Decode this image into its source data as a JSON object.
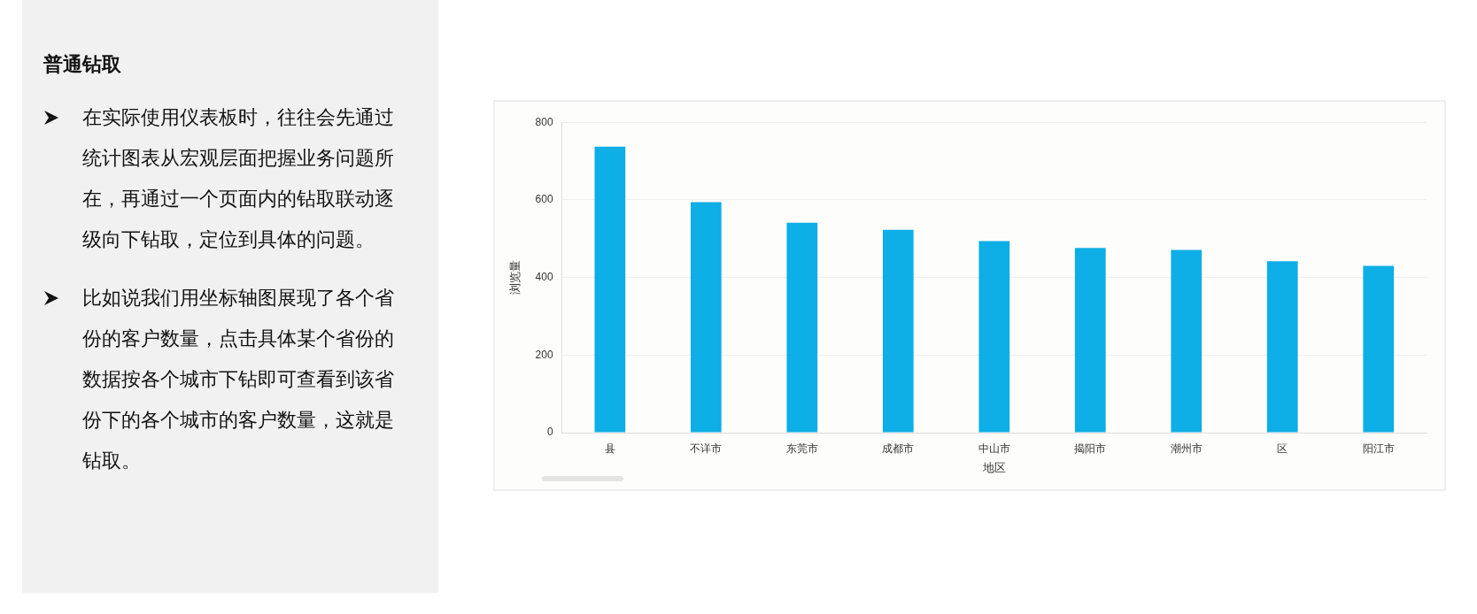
{
  "chart_data": [
    {
      "type": "other",
      "title": "普通钻取",
      "annotations": [
        "在实际使用仪表板时，往往会先通过统计图表从宏观层面把握业务问题所在，再通过一个页面内的钻取联动逐级向下钻取，定位到具体的问题。",
        "比如说我们用坐标轴图展现了各个省份的客户数量，点击具体某个省份的数据按各个城市下钻即可查看到该省份下的各个城市的客户数量，这就是钻取。"
      ]
    },
    {
      "type": "bar",
      "xlabel": "地区",
      "ylabel": "浏览量",
      "categories": [
        "县",
        "不详市",
        "东莞市",
        "成都市",
        "中山市",
        "揭阳市",
        "潮州市",
        "区",
        "阳江市"
      ],
      "values": [
        737,
        594,
        541,
        523,
        494,
        476,
        471,
        442,
        430
      ],
      "color": "#0eaee6",
      "ylim": [
        0,
        800
      ],
      "yticks": [
        0,
        200,
        400,
        600,
        800
      ],
      "grid": "y",
      "legend": false
    }
  ]
}
